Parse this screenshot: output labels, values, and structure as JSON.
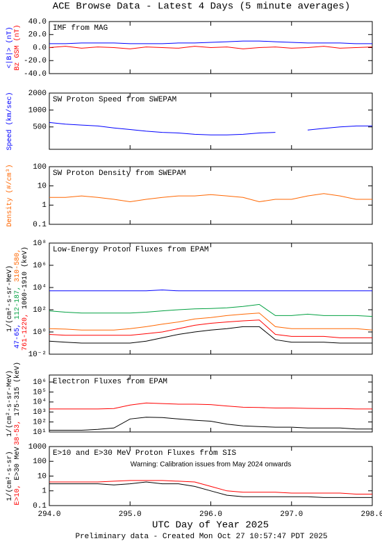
{
  "title": "ACE Browse Data - Latest 4 Days (5 minute averages)",
  "xlabel": "UTC Day of Year 2025",
  "footer": "Preliminary data - Created Mon Oct 27 10:57:47 PDT 2025",
  "chart_data": [
    {
      "type": "line",
      "title": "IMF from MAG",
      "ylabel": [
        [
          {
            "text": "<|B|> (nT)",
            "color": "#0000ff"
          }
        ],
        [
          {
            "text": "Bz GSM (nT)",
            "color": "#ff0000"
          }
        ]
      ],
      "x": [
        294,
        294.2,
        294.4,
        294.6,
        294.8,
        295,
        295.2,
        295.4,
        295.6,
        295.8,
        296,
        296.2,
        296.4,
        296.6,
        296.8,
        297,
        297.2,
        297.4,
        297.6,
        297.8,
        298
      ],
      "xlim": [
        294,
        298
      ],
      "ylim": [
        -40,
        40
      ],
      "yticks": [
        {
          "value": -40,
          "label": "-40.0"
        },
        {
          "value": -20,
          "label": "-20.0"
        },
        {
          "value": 0,
          "label": "0.0"
        },
        {
          "value": 20,
          "label": "20.0"
        },
        {
          "value": 40,
          "label": "40.0"
        }
      ],
      "series": [
        {
          "color": "#0000ff",
          "values": [
            6,
            6,
            7,
            7,
            7,
            6,
            6,
            6,
            7,
            7,
            8,
            9,
            10,
            10,
            9,
            8,
            7,
            7,
            7,
            6,
            6
          ]
        },
        {
          "color": "#ff0000",
          "values": [
            0,
            2,
            -1,
            1,
            0,
            -2,
            1,
            0,
            -1,
            2,
            0,
            1,
            -2,
            0,
            1,
            -1,
            0,
            2,
            -1,
            0,
            1
          ]
        }
      ]
    },
    {
      "type": "line",
      "title": "SW Proton Speed from SWEPAM",
      "ylabel": [
        [
          {
            "text": "Speed (km/sec)",
            "color": "#0000ff"
          }
        ]
      ],
      "x": [
        294,
        294.2,
        294.4,
        294.6,
        294.8,
        295,
        295.2,
        295.4,
        295.6,
        295.8,
        296,
        296.2,
        296.4,
        296.6,
        296.8,
        297,
        297.2,
        297.4,
        297.6,
        297.8,
        298
      ],
      "xlim": [
        294,
        298
      ],
      "ylim": [
        200,
        2000
      ],
      "log": true,
      "yticks": [
        500,
        1000,
        2000
      ],
      "series": [
        {
          "color": "#0000ff",
          "values": [
            600,
            560,
            540,
            520,
            480,
            450,
            420,
            400,
            390,
            370,
            360,
            360,
            370,
            390,
            400,
            null,
            440,
            470,
            500,
            520,
            520
          ]
        }
      ]
    },
    {
      "type": "line",
      "title": "SW Proton Density from SWEPAM",
      "ylabel": [
        [
          {
            "text": "Density (#/cm³)",
            "color": "#ff6600"
          }
        ]
      ],
      "x": [
        294,
        294.2,
        294.4,
        294.6,
        294.8,
        295,
        295.2,
        295.4,
        295.6,
        295.8,
        296,
        296.2,
        296.4,
        296.6,
        296.8,
        297,
        297.2,
        297.4,
        297.6,
        297.8,
        298
      ],
      "xlim": [
        294,
        298
      ],
      "ylim": [
        0.1,
        100
      ],
      "log": true,
      "yticks": [
        0.1,
        1,
        10,
        100
      ],
      "series": [
        {
          "color": "#ff6600",
          "values": [
            2.5,
            2.5,
            3,
            2.5,
            2,
            1.5,
            2,
            2.5,
            3,
            3,
            3.5,
            3,
            2.5,
            1.5,
            2,
            2,
            3,
            4,
            3,
            2,
            2
          ]
        }
      ]
    },
    {
      "type": "line",
      "title": "Low-Energy Proton Fluxes from EPAM",
      "ylabel": [
        [
          {
            "text": "1/(cm²-s-sr-MeV)",
            "color": "#000000"
          }
        ],
        [
          {
            "text": "47-65, ",
            "color": "#0000ff"
          },
          {
            "text": "112-187, ",
            "color": "#00a040"
          },
          {
            "text": "310-580,",
            "color": "#ff6600"
          }
        ],
        [
          {
            "text": "761-1220, ",
            "color": "#ff0000"
          },
          {
            "text": "1060-1910 (keV)",
            "color": "#000000"
          }
        ]
      ],
      "x": [
        294,
        294.2,
        294.4,
        294.6,
        294.8,
        295,
        295.2,
        295.4,
        295.6,
        295.8,
        296,
        296.2,
        296.4,
        296.6,
        296.8,
        297,
        297.2,
        297.4,
        297.6,
        297.8,
        298
      ],
      "xlim": [
        294,
        298
      ],
      "ylim": [
        0.01,
        100000000
      ],
      "log": true,
      "yticks": [
        {
          "value": 0.01,
          "label": "10⁻²"
        },
        {
          "value": 1,
          "label": "10⁰"
        },
        {
          "value": 100,
          "label": "10²"
        },
        {
          "value": 10000,
          "label": "10⁴"
        },
        {
          "value": 1000000,
          "label": "10⁶"
        },
        {
          "value": 100000000,
          "label": "10⁸"
        }
      ],
      "series": [
        {
          "color": "#0000ff",
          "values": [
            5000,
            5000,
            5000,
            5000,
            5000,
            5000,
            5000,
            6000,
            5000,
            5000,
            5000,
            5000,
            5000,
            5000,
            5000,
            5000,
            5000,
            5000,
            5000,
            5000,
            5000
          ]
        },
        {
          "color": "#00a040",
          "values": [
            80,
            60,
            50,
            50,
            50,
            50,
            60,
            80,
            100,
            120,
            130,
            150,
            200,
            300,
            30,
            30,
            40,
            30,
            30,
            30,
            25
          ]
        },
        {
          "color": "#ff6600",
          "values": [
            2,
            1.8,
            1.5,
            1.5,
            1.5,
            2,
            3,
            5,
            8,
            15,
            20,
            30,
            40,
            50,
            3,
            2,
            2,
            2,
            2,
            2,
            1.5
          ]
        },
        {
          "color": "#ff0000",
          "values": [
            0.6,
            0.5,
            0.5,
            0.5,
            0.5,
            0.5,
            0.7,
            1,
            2,
            4,
            6,
            8,
            10,
            12,
            0.6,
            0.4,
            0.4,
            0.4,
            0.3,
            0.3,
            0.3
          ]
        },
        {
          "color": "#000000",
          "values": [
            0.15,
            0.12,
            0.1,
            0.1,
            0.1,
            0.1,
            0.15,
            0.3,
            0.6,
            1,
            1.5,
            2,
            3,
            3,
            0.2,
            0.12,
            0.12,
            0.12,
            0.1,
            0.1,
            0.1
          ]
        }
      ]
    },
    {
      "type": "line",
      "title": "Electron Fluxes from EPAM",
      "ylabel": [
        [
          {
            "text": "1/(cm²-s-sr-MeV)",
            "color": "#000000"
          }
        ],
        [
          {
            "text": "38-53, ",
            "color": "#ff0000"
          },
          {
            "text": "175-315 (keV)",
            "color": "#000000"
          }
        ]
      ],
      "x": [
        294,
        294.2,
        294.4,
        294.6,
        294.8,
        295,
        295.2,
        295.4,
        295.6,
        295.8,
        296,
        296.2,
        296.4,
        296.6,
        296.8,
        297,
        297.2,
        297.4,
        297.6,
        297.8,
        298
      ],
      "xlim": [
        294,
        298
      ],
      "ylim": [
        10,
        5000000
      ],
      "log": true,
      "yticks": [
        {
          "value": 10,
          "label": "10¹"
        },
        {
          "value": 100,
          "label": "10²"
        },
        {
          "value": 1000,
          "label": "10³"
        },
        {
          "value": 10000,
          "label": "10⁴"
        },
        {
          "value": 100000,
          "label": "10⁵"
        },
        {
          "value": 1000000,
          "label": "10⁶"
        }
      ],
      "series": [
        {
          "color": "#ff0000",
          "values": [
            2000,
            2000,
            2000,
            2000,
            2200,
            5000,
            8000,
            7000,
            6000,
            6000,
            5500,
            4000,
            3000,
            2800,
            2500,
            2500,
            2300,
            2200,
            2200,
            2000,
            2000
          ]
        },
        {
          "color": "#000000",
          "values": [
            15,
            15,
            15,
            18,
            25,
            200,
            300,
            280,
            200,
            150,
            120,
            60,
            40,
            35,
            30,
            30,
            25,
            25,
            25,
            20,
            20
          ]
        }
      ]
    },
    {
      "type": "line",
      "title": "E>10 and E>30 MeV Proton Fluxes from SIS",
      "annotation": {
        "text": "Warning: Calibration issues from May 2024 onwards",
        "color": "#ff0000"
      },
      "ylabel": [
        [
          {
            "text": "1/(cm²-s-sr)",
            "color": "#000000"
          }
        ],
        [
          {
            "text": "E>10, ",
            "color": "#ff0000"
          },
          {
            "text": "E>30 MeV",
            "color": "#000000"
          }
        ]
      ],
      "x": [
        294,
        294.2,
        294.4,
        294.6,
        294.8,
        295,
        295.2,
        295.4,
        295.6,
        295.8,
        296,
        296.2,
        296.4,
        296.6,
        296.8,
        297,
        297.2,
        297.4,
        297.6,
        297.8,
        298
      ],
      "xlim": [
        294,
        298
      ],
      "ylim": [
        0.1,
        1000
      ],
      "log": true,
      "yticks": [
        0.1,
        1,
        10,
        100,
        1000
      ],
      "xticks": [
        {
          "value": 294,
          "label": "294.0"
        },
        {
          "value": 295,
          "label": "295.0"
        },
        {
          "value": 296,
          "label": "296.0"
        },
        {
          "value": 297,
          "label": "297.0"
        },
        {
          "value": 298,
          "label": "298.0"
        }
      ],
      "series": [
        {
          "color": "#ff0000",
          "values": [
            4,
            4,
            4,
            4,
            4.5,
            5,
            5,
            5,
            4.5,
            4,
            2,
            1,
            0.8,
            0.8,
            0.8,
            0.7,
            0.7,
            0.7,
            0.7,
            0.6,
            0.6
          ]
        },
        {
          "color": "#000000",
          "values": [
            3,
            3,
            3,
            3,
            2.5,
            3,
            4,
            3,
            3,
            2,
            1,
            0.5,
            0.4,
            0.4,
            0.4,
            0.4,
            0.4,
            0.35,
            0.35,
            0.35,
            0.35
          ]
        }
      ]
    }
  ]
}
